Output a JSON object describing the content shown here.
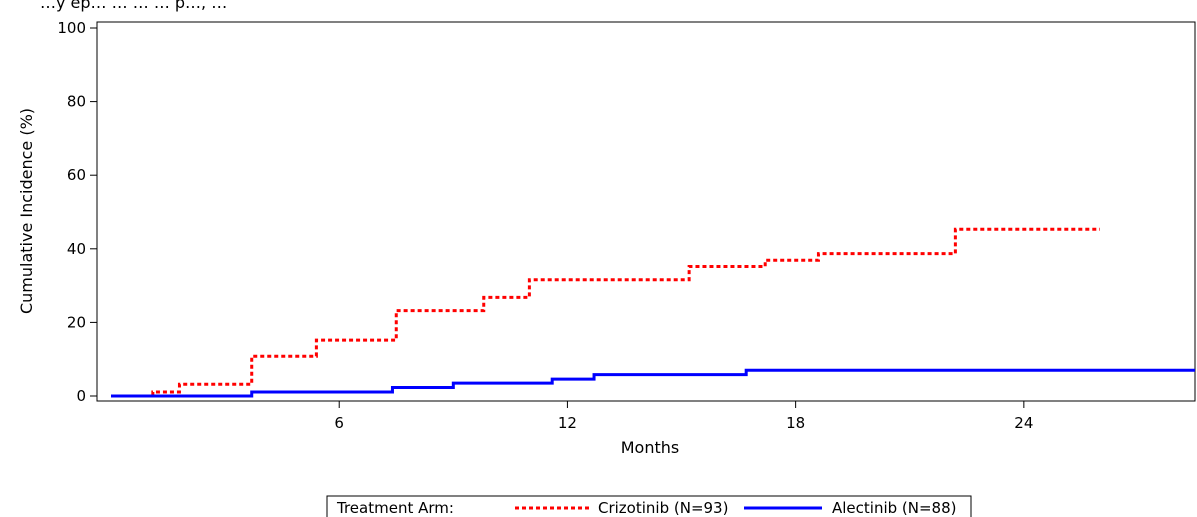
{
  "chart_data": {
    "type": "line",
    "title": "",
    "xlabel": "Months",
    "ylabel": "Cumulative Incidence (%)",
    "xlim": [
      0,
      28.5
    ],
    "ylim": [
      0,
      100
    ],
    "xticks": [
      6,
      12,
      18,
      24
    ],
    "yticks": [
      0,
      20,
      40,
      60,
      80,
      100
    ],
    "step": true,
    "series": [
      {
        "name": "Crizotinib (N=93)",
        "color": "#ff0000",
        "style": "dotted",
        "x": [
          0,
          1.1,
          1.8,
          3.7,
          5.4,
          7.5,
          9.8,
          11.0,
          15.2,
          17.2,
          18.6,
          22.2,
          26.0
        ],
        "y": [
          0,
          1.1,
          3.2,
          10.8,
          15.2,
          23.2,
          26.8,
          31.6,
          35.2,
          36.9,
          38.7,
          45.3,
          45.3
        ]
      },
      {
        "name": "Alectinib (N=88)",
        "color": "#0000ff",
        "style": "solid",
        "x": [
          0,
          3.7,
          7.4,
          9.0,
          11.6,
          12.7,
          16.7,
          28.5
        ],
        "y": [
          0,
          1.1,
          2.3,
          3.5,
          4.6,
          5.8,
          7.0,
          7.0
        ]
      }
    ],
    "legend": {
      "heading": "Treatment Arm:",
      "position": "bottom"
    }
  },
  "title_fragment": "…y ep… … … … p…, …"
}
